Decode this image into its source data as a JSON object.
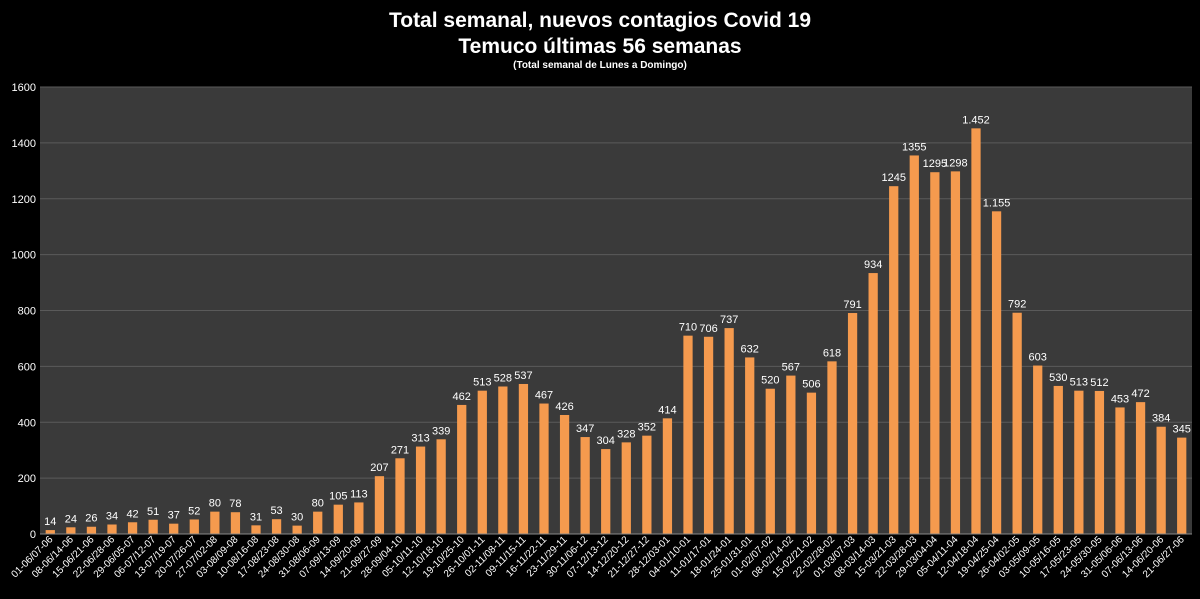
{
  "chart_data": {
    "type": "bar",
    "title": "Total semanal, nuevos contagios Covid 19",
    "subtitle": "Temuco últimas 56 semanas",
    "note": "(Total semanal de Lunes a Domingo)",
    "ylim": [
      0,
      1600
    ],
    "yticks": [
      0,
      200,
      400,
      600,
      800,
      1000,
      1200,
      1400,
      1600
    ],
    "grid": true,
    "bar_color": "#F59A4E",
    "background": "#000000",
    "plot_background": "#3A3A3A",
    "categories": [
      "01-06/07-06",
      "08-06/14-06",
      "15-06/21-06",
      "22-06/28-06",
      "29-06/05-07",
      "06-07/12-07",
      "13-07/19-07",
      "20-07/26-07",
      "27-07/02-08",
      "03-08/09-08",
      "10-08/16-08",
      "17-08/23-08",
      "24-08/30-08",
      "31-08/06-09",
      "07-09/13-09",
      "14-09/20-09",
      "21-09/27-09",
      "28-09/04-10",
      "05-10/11-10",
      "12-10/18-10",
      "19-10/25-10",
      "26-10/01-11",
      "02-11/08-11",
      "09-11/15-11",
      "16-11/22-11",
      "23-11/29-11",
      "30-11/06-12",
      "07-12/13-12",
      "14-12/20-12",
      "21-12/27-12",
      "28-12/03-01",
      "04-01/10-01",
      "11-01/17-01",
      "18-01/24-01",
      "25-01/31-01",
      "01-02/07-02",
      "08-02/14-02",
      "15-02/21-02",
      "22-02/28-02",
      "01-03/07-03",
      "08-03/14-03",
      "15-03/21-03",
      "22-03/28-03",
      "29-03/04-04",
      "05-04/11-04",
      "12-04/18-04",
      "19-04/25-04",
      "26-04/02-05",
      "03-05/09-05",
      "10-05/16-05",
      "17-05/23-05",
      "24-05/30-05",
      "31-05/06-06",
      "07-06/13-06",
      "14-06/20-06",
      "21-06/27-06"
    ],
    "values": [
      14,
      24,
      26,
      34,
      42,
      51,
      37,
      52,
      80,
      78,
      31,
      53,
      30,
      80,
      105,
      113,
      207,
      271,
      313,
      339,
      462,
      513,
      528,
      537,
      467,
      426,
      347,
      304,
      328,
      352,
      414,
      710,
      706,
      737,
      632,
      520,
      567,
      506,
      618,
      791,
      934,
      1245,
      1355,
      1295,
      1298,
      1452,
      1155,
      792,
      603,
      530,
      513,
      512,
      453,
      472,
      384,
      345
    ],
    "data_labels": [
      "14",
      "24",
      "26",
      "34",
      "42",
      "51",
      "37",
      "52",
      "80",
      "78",
      "31",
      "53",
      "30",
      "80",
      "105",
      "113",
      "207",
      "271",
      "313",
      "339",
      "462",
      "513",
      "528",
      "537",
      "467",
      "426",
      "347",
      "304",
      "328",
      "352",
      "414",
      "710",
      "706",
      "737",
      "632",
      "520",
      "567",
      "506",
      "618",
      "791",
      "934",
      "1245",
      "1355",
      "1295",
      "1298",
      "1.452",
      "1.155",
      "792",
      "603",
      "530",
      "513",
      "512",
      "453",
      "472",
      "384",
      "345"
    ]
  }
}
